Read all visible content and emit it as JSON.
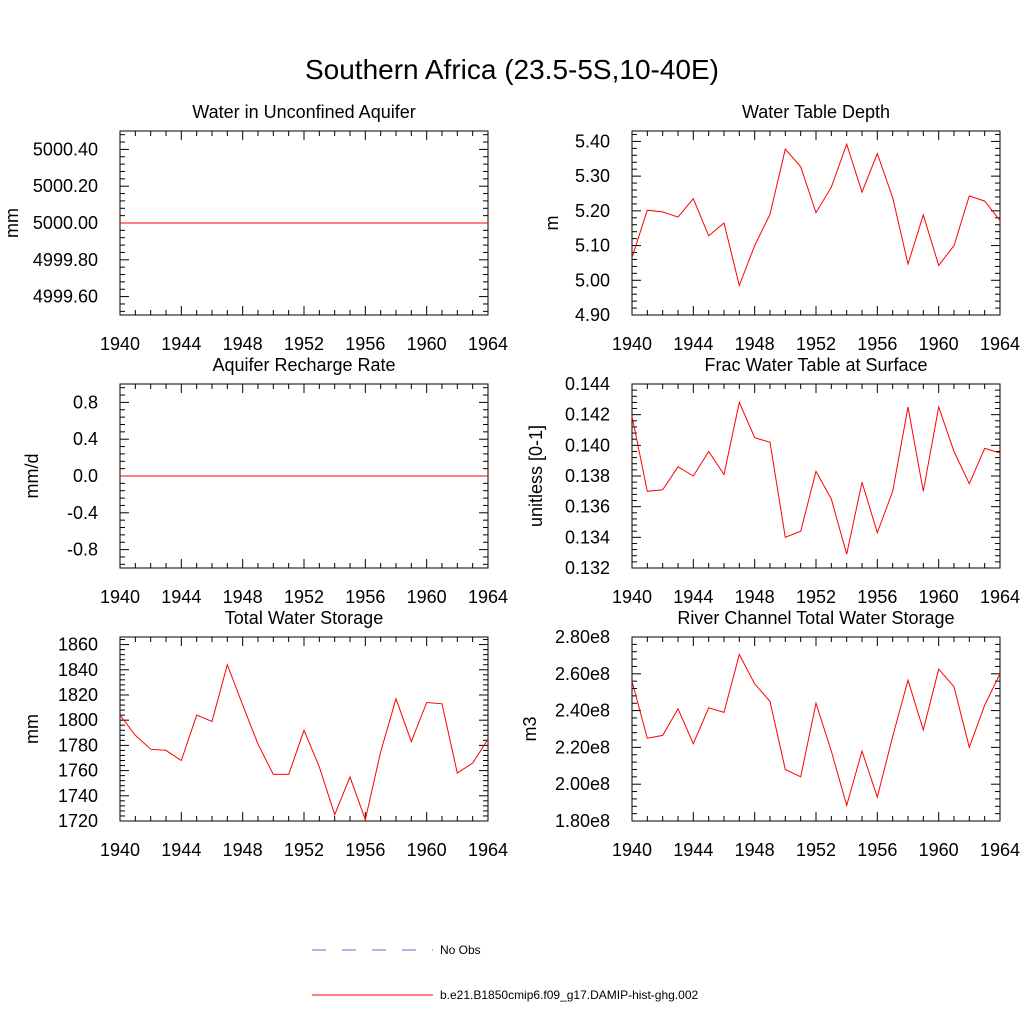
{
  "title": "Southern Africa (23.5-5S,10-40E)",
  "line_color": "#ff0000",
  "obs_color": "#6b6bd6",
  "legend": {
    "obs_label": "No Obs",
    "model_label": "b.e21.B1850cmip6.f09_g17.DAMIP-hist-ghg.002"
  },
  "chart_data": [
    {
      "type": "line",
      "title": "Water in Unconfined Aquifer",
      "xlabel": "",
      "ylabel": "mm",
      "xlim": [
        1940,
        1964
      ],
      "ylim": [
        4999.5,
        5000.5
      ],
      "xticks": [
        1940,
        1944,
        1948,
        1952,
        1956,
        1960,
        1964
      ],
      "xtick_labels": [
        "1940",
        "1944",
        "1948",
        "1952",
        "1956",
        "1960",
        "1964"
      ],
      "yticks": [
        4999.6,
        4999.8,
        5000.0,
        5000.2,
        5000.4
      ],
      "ytick_labels": [
        "4999.60",
        "4999.80",
        "5000.00",
        "5000.20",
        "5000.40"
      ],
      "x": [
        1940,
        1941,
        1942,
        1943,
        1944,
        1945,
        1946,
        1947,
        1948,
        1949,
        1950,
        1951,
        1952,
        1953,
        1954,
        1955,
        1956,
        1957,
        1958,
        1959,
        1960,
        1961,
        1962,
        1963,
        1964
      ],
      "y": [
        5000,
        5000,
        5000,
        5000,
        5000,
        5000,
        5000,
        5000,
        5000,
        5000,
        5000,
        5000,
        5000,
        5000,
        5000,
        5000,
        5000,
        5000,
        5000,
        5000,
        5000,
        5000,
        5000,
        5000,
        5000
      ]
    },
    {
      "type": "line",
      "title": "Water Table Depth",
      "xlabel": "",
      "ylabel": "m",
      "xlim": [
        1940,
        1964
      ],
      "ylim": [
        4.9,
        5.43
      ],
      "xticks": [
        1940,
        1944,
        1948,
        1952,
        1956,
        1960,
        1964
      ],
      "xtick_labels": [
        "1940",
        "1944",
        "1948",
        "1952",
        "1956",
        "1960",
        "1964"
      ],
      "yticks": [
        4.9,
        5.0,
        5.1,
        5.2,
        5.3,
        5.4
      ],
      "ytick_labels": [
        "4.90",
        "5.00",
        "5.10",
        "5.20",
        "5.30",
        "5.40"
      ],
      "x": [
        1940,
        1941,
        1942,
        1943,
        1944,
        1945,
        1946,
        1947,
        1948,
        1949,
        1950,
        1951,
        1952,
        1953,
        1954,
        1955,
        1956,
        1957,
        1958,
        1959,
        1960,
        1961,
        1962,
        1963,
        1964
      ],
      "y": [
        5.065,
        5.202,
        5.197,
        5.182,
        5.235,
        5.128,
        5.165,
        4.985,
        5.1,
        5.19,
        5.378,
        5.327,
        5.195,
        5.268,
        5.392,
        5.254,
        5.365,
        5.238,
        5.047,
        5.188,
        5.043,
        5.1,
        5.243,
        5.228,
        5.172
      ]
    },
    {
      "type": "line",
      "title": "Aquifer Recharge Rate",
      "xlabel": "",
      "ylabel": "mm/d",
      "xlim": [
        1940,
        1964
      ],
      "ylim": [
        -1.0,
        1.0
      ],
      "xticks": [
        1940,
        1944,
        1948,
        1952,
        1956,
        1960,
        1964
      ],
      "xtick_labels": [
        "1940",
        "1944",
        "1948",
        "1952",
        "1956",
        "1960",
        "1964"
      ],
      "yticks": [
        -0.8,
        -0.4,
        0.0,
        0.4,
        0.8
      ],
      "ytick_labels": [
        "-0.8",
        "-0.4",
        "0.0",
        "0.4",
        "0.8"
      ],
      "x": [
        1940,
        1941,
        1942,
        1943,
        1944,
        1945,
        1946,
        1947,
        1948,
        1949,
        1950,
        1951,
        1952,
        1953,
        1954,
        1955,
        1956,
        1957,
        1958,
        1959,
        1960,
        1961,
        1962,
        1963,
        1964
      ],
      "y": [
        0,
        0,
        0,
        0,
        0,
        0,
        0,
        0,
        0,
        0,
        0,
        0,
        0,
        0,
        0,
        0,
        0,
        0,
        0,
        0,
        0,
        0,
        0,
        0,
        0
      ]
    },
    {
      "type": "line",
      "title": "Frac Water Table at Surface",
      "xlabel": "",
      "ylabel": "unitless [0-1]",
      "xlim": [
        1940,
        1964
      ],
      "ylim": [
        0.132,
        0.144
      ],
      "xticks": [
        1940,
        1944,
        1948,
        1952,
        1956,
        1960,
        1964
      ],
      "xtick_labels": [
        "1940",
        "1944",
        "1948",
        "1952",
        "1956",
        "1960",
        "1964"
      ],
      "yticks": [
        0.132,
        0.134,
        0.136,
        0.138,
        0.14,
        0.142,
        0.144
      ],
      "ytick_labels": [
        "0.132",
        "0.134",
        "0.136",
        "0.138",
        "0.140",
        "0.142",
        "0.144"
      ],
      "x": [
        1940,
        1941,
        1942,
        1943,
        1944,
        1945,
        1946,
        1947,
        1948,
        1949,
        1950,
        1951,
        1952,
        1953,
        1954,
        1955,
        1956,
        1957,
        1958,
        1959,
        1960,
        1961,
        1962,
        1963,
        1964
      ],
      "y": [
        0.1419,
        0.137,
        0.1371,
        0.1386,
        0.138,
        0.1396,
        0.1381,
        0.1428,
        0.1405,
        0.1402,
        0.134,
        0.1344,
        0.1383,
        0.1365,
        0.1329,
        0.1376,
        0.1343,
        0.137,
        0.1425,
        0.137,
        0.1425,
        0.1396,
        0.1375,
        0.1398,
        0.1395
      ]
    },
    {
      "type": "line",
      "title": "Total Water Storage",
      "xlabel": "",
      "ylabel": "mm",
      "xlim": [
        1940,
        1964
      ],
      "ylim": [
        1720,
        1866
      ],
      "xticks": [
        1940,
        1944,
        1948,
        1952,
        1956,
        1960,
        1964
      ],
      "xtick_labels": [
        "1940",
        "1944",
        "1948",
        "1952",
        "1956",
        "1960",
        "1964"
      ],
      "yticks": [
        1720,
        1740,
        1760,
        1780,
        1800,
        1820,
        1840,
        1860
      ],
      "ytick_labels": [
        "1720",
        "1740",
        "1760",
        "1780",
        "1800",
        "1820",
        "1840",
        "1860"
      ],
      "x": [
        1940,
        1941,
        1942,
        1943,
        1944,
        1945,
        1946,
        1947,
        1948,
        1949,
        1950,
        1951,
        1952,
        1953,
        1954,
        1955,
        1956,
        1957,
        1958,
        1959,
        1960,
        1961,
        1962,
        1963,
        1964
      ],
      "y": [
        1804,
        1788,
        1777,
        1776,
        1768,
        1804,
        1799,
        1844,
        1812,
        1781,
        1757,
        1757,
        1792,
        1763,
        1725,
        1755,
        1721,
        1775,
        1817,
        1783,
        1814,
        1813,
        1758,
        1766,
        1785
      ]
    },
    {
      "type": "line",
      "title": "River Channel Total Water Storage",
      "xlabel": "",
      "ylabel": "m3",
      "xlim": [
        1940,
        1964
      ],
      "ylim": [
        180000000.0,
        280000000.0
      ],
      "xticks": [
        1940,
        1944,
        1948,
        1952,
        1956,
        1960,
        1964
      ],
      "xtick_labels": [
        "1940",
        "1944",
        "1948",
        "1952",
        "1956",
        "1960",
        "1964"
      ],
      "yticks": [
        180000000.0,
        200000000.0,
        220000000.0,
        240000000.0,
        260000000.0,
        280000000.0
      ],
      "ytick_labels": [
        "1.80e8",
        "2.00e8",
        "2.20e8",
        "2.40e8",
        "2.60e8",
        "2.80e8"
      ],
      "x": [
        1940,
        1941,
        1942,
        1943,
        1944,
        1945,
        1946,
        1947,
        1948,
        1949,
        1950,
        1951,
        1952,
        1953,
        1954,
        1955,
        1956,
        1957,
        1958,
        1959,
        1960,
        1961,
        1962,
        1963,
        1964
      ],
      "y": [
        256000000.0,
        225000000.0,
        226500000.0,
        241000000.0,
        222000000.0,
        241500000.0,
        239000000.0,
        270500000.0,
        254500000.0,
        245000000.0,
        208000000.0,
        204000000.0,
        244000000.0,
        218000000.0,
        188500000.0,
        218000000.0,
        193000000.0,
        226000000.0,
        256500000.0,
        229500000.0,
        262500000.0,
        253000000.0,
        220000000.0,
        243000000.0,
        260000000.0
      ]
    }
  ]
}
